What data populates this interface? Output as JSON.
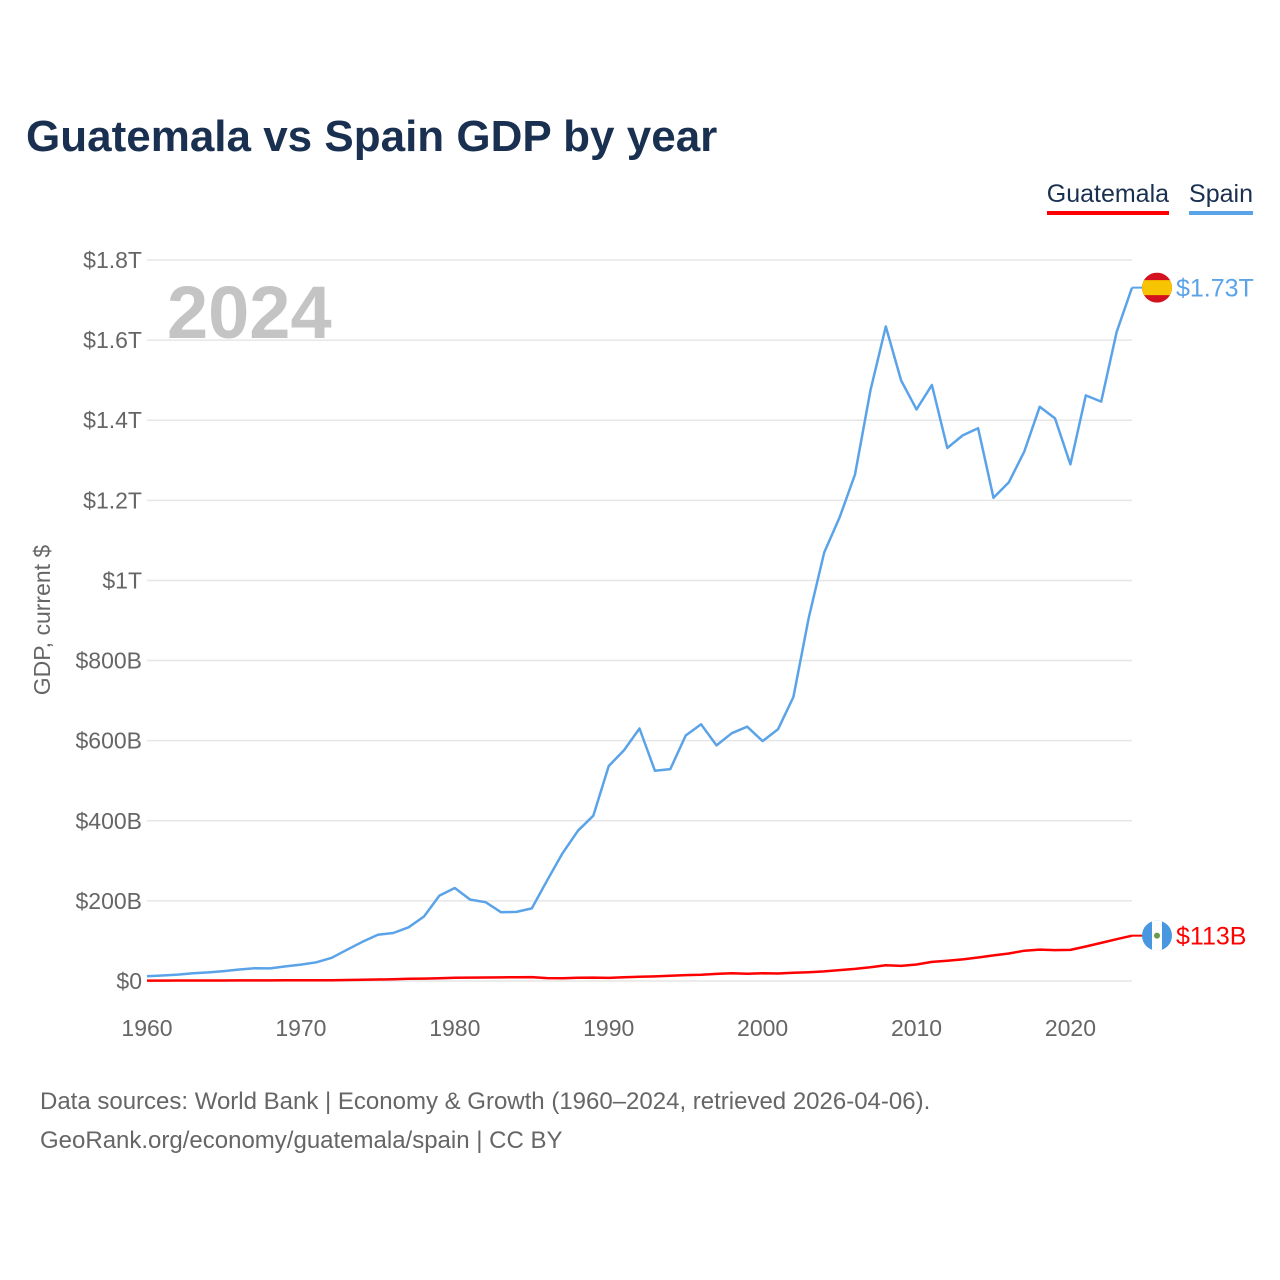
{
  "title": "Guatemala vs Spain GDP by year",
  "footer": {
    "line1": "Data sources: World Bank | Economy & Growth (1960–2024, retrieved 2026-04-06).",
    "line2": "GeoRank.org/economy/guatemala/spain | CC BY"
  },
  "chart_data": {
    "type": "line",
    "title": "Guatemala vs Spain GDP by year",
    "ylabel": "GDP, current $",
    "xlabel": "",
    "year_label": "2024",
    "ylim": [
      0,
      1800
    ],
    "xlim": [
      1960,
      2024
    ],
    "grid": true,
    "legend_position": "top-right",
    "x_ticks": [
      1960,
      1970,
      1980,
      1990,
      2000,
      2010,
      2020
    ],
    "y_ticks": [
      {
        "v": 0,
        "label": "$0"
      },
      {
        "v": 200,
        "label": "$200B"
      },
      {
        "v": 400,
        "label": "$400B"
      },
      {
        "v": 600,
        "label": "$600B"
      },
      {
        "v": 800,
        "label": "$800B"
      },
      {
        "v": 1000,
        "label": "$1T"
      },
      {
        "v": 1200,
        "label": "$1.2T"
      },
      {
        "v": 1400,
        "label": "$1.4T"
      },
      {
        "v": 1600,
        "label": "$1.6T"
      },
      {
        "v": 1800,
        "label": "$1.8T"
      }
    ],
    "units": "billions USD",
    "series": [
      {
        "name": "Guatemala",
        "color": "#ff0000",
        "end_label": "$113B",
        "flag": "guatemala-flag-icon",
        "values": [
          1.0,
          1.1,
          1.2,
          1.3,
          1.3,
          1.3,
          1.4,
          1.5,
          1.6,
          1.7,
          1.9,
          2.0,
          2.1,
          2.6,
          3.1,
          3.7,
          4.4,
          5.5,
          6.1,
          6.9,
          7.9,
          8.6,
          8.7,
          9.1,
          9.5,
          9.7,
          7.2,
          7.1,
          7.9,
          8.4,
          7.7,
          9.4,
          10.4,
          11.4,
          13.0,
          14.7,
          15.8,
          17.7,
          19.4,
          18.3,
          19.3,
          18.7,
          20.8,
          21.9,
          24.0,
          27.2,
          30.2,
          34.1,
          39.1,
          37.7,
          41.3,
          47.7,
          50.4,
          53.9,
          58.7,
          63.8,
          68.7,
          75.6,
          78.5,
          77.2,
          77.7,
          86.1,
          95.0,
          104.4,
          113.2
        ]
      },
      {
        "name": "Spain",
        "color": "#5ba3e8",
        "end_label": "$1.73T",
        "flag": "spain-flag-icon",
        "values": [
          12.1,
          13.8,
          16.1,
          19.1,
          21.5,
          24.8,
          28.8,
          31.7,
          31.5,
          36.4,
          41.0,
          46.6,
          58.0,
          78.2,
          97.9,
          115.6,
          119.9,
          134.1,
          161.1,
          213.1,
          232.3,
          203.1,
          196.7,
          171.7,
          172.6,
          181.2,
          251.5,
          318.9,
          374.9,
          412.6,
          536.6,
          576.4,
          630.3,
          525.1,
          529.1,
          612.9,
          640.9,
          588.1,
          618.6,
          634.9,
          599.0,
          628.3,
          709.1,
          907.4,
          1069.7,
          1157.3,
          1264.5,
          1474.0,
          1634.0,
          1499.3,
          1427.0,
          1487.9,
          1330.7,
          1362.2,
          1380.0,
          1206.2,
          1245.3,
          1322.0,
          1433.6,
          1404.5,
          1289.8,
          1461.9,
          1446.5,
          1620.1,
          1731.0
        ]
      }
    ]
  }
}
